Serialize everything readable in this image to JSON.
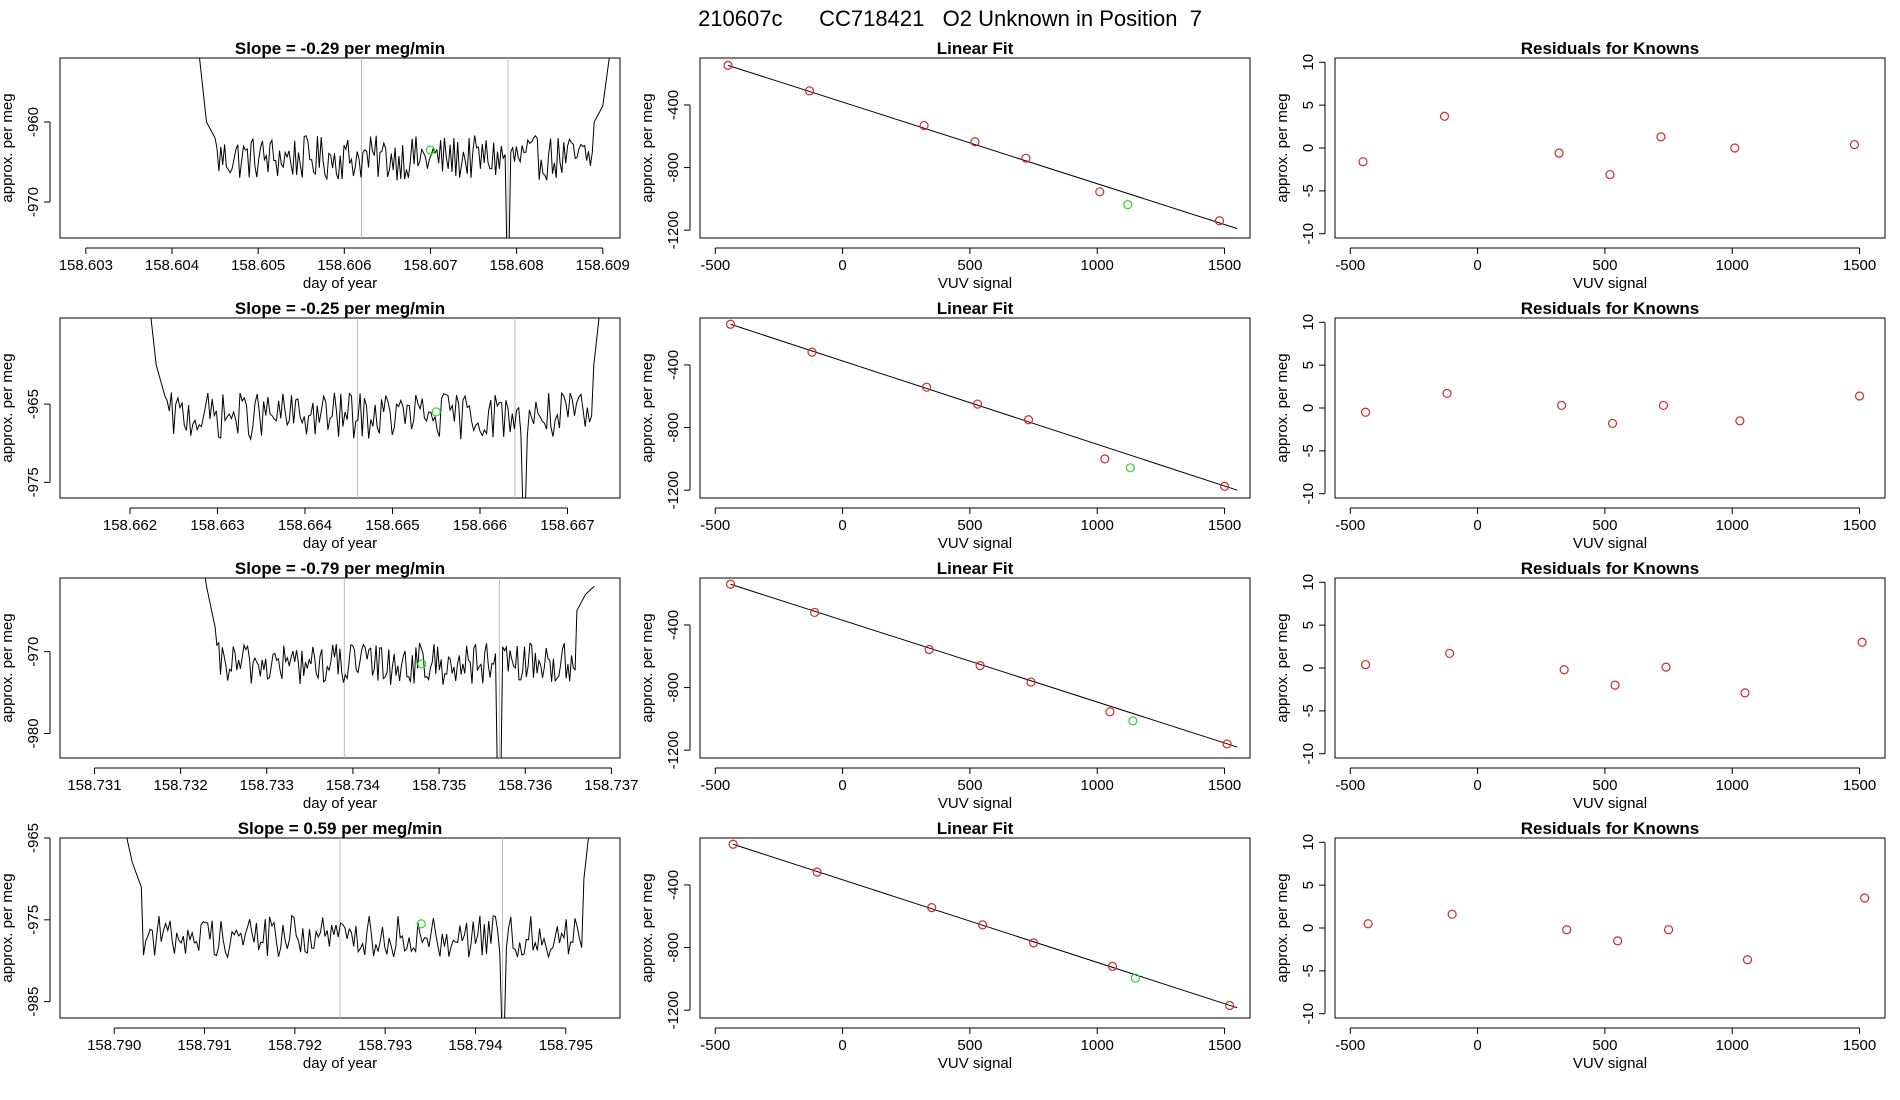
{
  "page_title": "210607c      CC718421   O2 Unknown in Position  7",
  "chart_data": [
    {
      "type": "line",
      "title": "Slope =  -0.29  per meg/min",
      "xlabel": "day of year",
      "ylabel": "approx. per meg",
      "xlim": [
        158.6027,
        158.6092
      ],
      "ylim": [
        -974.5,
        -952
      ],
      "xticks": [
        "158.603",
        "158.604",
        "158.605",
        "158.606",
        "158.607",
        "158.608",
        "158.609"
      ],
      "yticks": [
        "-960",
        "-970"
      ],
      "ytick_values": [
        -960,
        -970
      ],
      "x_start": 158.6043,
      "x_end": 158.6091,
      "baseline": -964.5,
      "amplitude": 2.8,
      "head": [
        [
          158.6043,
          -950
        ],
        [
          158.6044,
          -960
        ],
        [
          158.6045,
          -962
        ]
      ],
      "tail": [
        [
          158.6089,
          -960
        ],
        [
          158.609,
          -958
        ],
        [
          158.6091,
          -950
        ]
      ],
      "dip": [
        158.6079,
        -977
      ],
      "vlines": [
        158.6062,
        158.6079
      ],
      "highlight": [
        158.607,
        -963.5
      ]
    },
    {
      "type": "scatter",
      "title": "Linear Fit",
      "xlabel": "VUV signal",
      "ylabel": "approx. per meg",
      "xlim": [
        -560,
        1600
      ],
      "ylim": [
        -1250,
        -100
      ],
      "xticks": [
        "-500",
        "0",
        "500",
        "1000",
        "1500"
      ],
      "yticks": [
        "-400",
        "-800",
        "-1200"
      ],
      "ytick_values": [
        -400,
        -800,
        -1200
      ],
      "points_x": [
        -450,
        -130,
        320,
        520,
        720,
        1010,
        1480
      ],
      "points_y": [
        -147,
        -310,
        -531,
        -635,
        -740,
        -955,
        -1140
      ],
      "unknown": [
        1120,
        -1037
      ],
      "fit_line": [
        [
          -450,
          -147
        ],
        [
          1550,
          -1190
        ]
      ]
    },
    {
      "type": "scatter",
      "title": "Residuals for Knowns",
      "xlabel": "VUV signal",
      "ylabel": "approx. per meg",
      "xlim": [
        -560,
        1600
      ],
      "ylim": [
        -10.5,
        10.5
      ],
      "xticks": [
        "-500",
        "0",
        "500",
        "1000",
        "1500"
      ],
      "yticks": [
        "10",
        "5",
        "0",
        "-5",
        "-10"
      ],
      "ytick_values": [
        10,
        5,
        0,
        -5,
        -10
      ],
      "points_x": [
        -450,
        -130,
        320,
        520,
        720,
        1010,
        1480
      ],
      "points_y": [
        -1.6,
        3.7,
        -0.6,
        -3.1,
        1.3,
        0,
        0.4
      ]
    },
    {
      "type": "line",
      "title": "Slope =  -0.25  per meg/min",
      "xlabel": "day of year",
      "ylabel": "approx. per meg",
      "xlim": [
        158.6612,
        158.6676
      ],
      "ylim": [
        -977,
        -954
      ],
      "xticks": [
        "158.662",
        "158.663",
        "158.664",
        "158.665",
        "158.666",
        "158.667"
      ],
      "yticks": [
        "-965",
        "-975"
      ],
      "ytick_values": [
        -965,
        -975
      ],
      "x_start": 158.6622,
      "x_end": 158.6674,
      "baseline": -966.5,
      "amplitude": 3.0,
      "head": [
        [
          158.6622,
          -950
        ],
        [
          158.6623,
          -960
        ],
        [
          158.6624,
          -964
        ]
      ],
      "tail": [
        [
          158.6673,
          -960
        ],
        [
          158.6674,
          -950
        ]
      ],
      "dip": [
        158.6665,
        -979
      ],
      "vlines": [
        158.6646,
        158.6664
      ],
      "highlight": [
        158.6655,
        -966
      ]
    },
    {
      "type": "scatter",
      "title": "Linear Fit",
      "xlabel": "VUV signal",
      "ylabel": "approx. per meg",
      "xlim": [
        -560,
        1600
      ],
      "ylim": [
        -1250,
        -100
      ],
      "xticks": [
        "-500",
        "0",
        "500",
        "1000",
        "1500"
      ],
      "yticks": [
        "-400",
        "-800",
        "-1200"
      ],
      "ytick_values": [
        -400,
        -800,
        -1200
      ],
      "points_x": [
        -440,
        -120,
        330,
        530,
        730,
        1030,
        1500
      ],
      "points_y": [
        -140,
        -318,
        -542,
        -650,
        -750,
        -1000,
        -1175
      ],
      "unknown": [
        1130,
        -1057
      ],
      "fit_line": [
        [
          -440,
          -140
        ],
        [
          1550,
          -1200
        ]
      ]
    },
    {
      "type": "scatter",
      "title": "Residuals for Knowns",
      "xlabel": "VUV signal",
      "ylabel": "approx. per meg",
      "xlim": [
        -560,
        1600
      ],
      "ylim": [
        -10.5,
        10.5
      ],
      "xticks": [
        "-500",
        "0",
        "500",
        "1000",
        "1500"
      ],
      "yticks": [
        "10",
        "5",
        "0",
        "-5",
        "-10"
      ],
      "ytick_values": [
        10,
        5,
        0,
        -5,
        -10
      ],
      "points_x": [
        -440,
        -120,
        330,
        530,
        730,
        1030,
        1500
      ],
      "points_y": [
        -0.5,
        1.7,
        0.3,
        -1.8,
        0.3,
        -1.5,
        1.4
      ]
    },
    {
      "type": "line",
      "title": "Slope =  -0.79  per meg/min",
      "xlabel": "day of year",
      "ylabel": "approx. per meg",
      "xlim": [
        158.7306,
        158.7371
      ],
      "ylim": [
        -983,
        -961
      ],
      "xticks": [
        "158.731",
        "158.732",
        "158.733",
        "158.734",
        "158.735",
        "158.736",
        "158.737"
      ],
      "yticks": [
        "-970",
        "-980"
      ],
      "ytick_values": [
        -970,
        -980
      ],
      "x_start": 158.7322,
      "x_end": 158.7368,
      "baseline": -971.5,
      "amplitude": 2.6,
      "head": [
        [
          158.7322,
          -955
        ],
        [
          158.7323,
          -962
        ],
        [
          158.7324,
          -967
        ]
      ],
      "tail": [
        [
          158.7366,
          -965
        ],
        [
          158.7367,
          -963
        ],
        [
          158.7368,
          -962
        ]
      ],
      "dip": [
        158.7357,
        -985
      ],
      "vlines": [
        158.7339,
        158.7357
      ],
      "highlight": [
        158.7348,
        -971.5
      ]
    },
    {
      "type": "scatter",
      "title": "Linear Fit",
      "xlabel": "VUV signal",
      "ylabel": "approx. per meg",
      "xlim": [
        -560,
        1600
      ],
      "ylim": [
        -1250,
        -100
      ],
      "xticks": [
        "-500",
        "0",
        "500",
        "1000",
        "1500"
      ],
      "yticks": [
        "-400",
        "-800",
        "-1200"
      ],
      "ytick_values": [
        -400,
        -800,
        -1200
      ],
      "points_x": [
        -440,
        -110,
        340,
        540,
        740,
        1050,
        1510
      ],
      "points_y": [
        -140,
        -320,
        -557,
        -660,
        -765,
        -955,
        -1160
      ],
      "unknown": [
        1140,
        -1013
      ],
      "fit_line": [
        [
          -440,
          -140
        ],
        [
          1550,
          -1180
        ]
      ]
    },
    {
      "type": "scatter",
      "title": "Residuals for Knowns",
      "xlabel": "VUV signal",
      "ylabel": "approx. per meg",
      "xlim": [
        -560,
        1600
      ],
      "ylim": [
        -10.5,
        10.5
      ],
      "xticks": [
        "-500",
        "0",
        "500",
        "1000",
        "1500"
      ],
      "yticks": [
        "10",
        "5",
        "0",
        "-5",
        "-10"
      ],
      "ytick_values": [
        10,
        5,
        0,
        -5,
        -10
      ],
      "points_x": [
        -440,
        -110,
        340,
        540,
        740,
        1050,
        1510
      ],
      "points_y": [
        0.4,
        1.7,
        -0.2,
        -2.0,
        0.1,
        -2.9,
        3.0
      ]
    },
    {
      "type": "line",
      "title": "Slope =  0.59  per meg/min",
      "xlabel": "day of year",
      "ylabel": "approx. per meg",
      "xlim": [
        158.7894,
        158.7956
      ],
      "ylim": [
        -987,
        -965
      ],
      "xticks": [
        "158.790",
        "158.791",
        "158.792",
        "158.793",
        "158.794",
        "158.795"
      ],
      "yticks": [
        "-965",
        "-975",
        "-985"
      ],
      "ytick_values": [
        -965,
        -975,
        -985
      ],
      "x_start": 158.7901,
      "x_end": 158.7953,
      "baseline": -977,
      "amplitude": 2.6,
      "head": [
        [
          158.7901,
          -963
        ],
        [
          158.7902,
          -968
        ],
        [
          158.7903,
          -971
        ]
      ],
      "tail": [
        [
          158.7952,
          -970
        ],
        [
          158.7953,
          -960
        ]
      ],
      "dip": [
        158.7943,
        -989
      ],
      "vlines": [
        158.7925,
        158.7943
      ],
      "highlight": [
        158.7934,
        -975.5
      ]
    },
    {
      "type": "scatter",
      "title": "Linear Fit",
      "xlabel": "VUV signal",
      "ylabel": "approx. per meg",
      "xlim": [
        -560,
        1600
      ],
      "ylim": [
        -1250,
        -100
      ],
      "xticks": [
        "-500",
        "0",
        "500",
        "1000",
        "1500"
      ],
      "yticks": [
        "-400",
        "-800",
        "-1200"
      ],
      "ytick_values": [
        -400,
        -800,
        -1200
      ],
      "points_x": [
        -430,
        -100,
        350,
        550,
        750,
        1060,
        1520
      ],
      "points_y": [
        -140,
        -318,
        -545,
        -655,
        -770,
        -920,
        -1170
      ],
      "unknown": [
        1150,
        -995
      ],
      "fit_line": [
        [
          -430,
          -140
        ],
        [
          1550,
          -1185
        ]
      ]
    },
    {
      "type": "scatter",
      "title": "Residuals for Knowns",
      "xlabel": "VUV signal",
      "ylabel": "approx. per meg",
      "xlim": [
        -560,
        1600
      ],
      "ylim": [
        -10.5,
        10.5
      ],
      "xticks": [
        "-500",
        "0",
        "500",
        "1000",
        "1500"
      ],
      "yticks": [
        "10",
        "5",
        "0",
        "-5",
        "-10"
      ],
      "ytick_values": [
        10,
        5,
        0,
        -5,
        -10
      ],
      "points_x": [
        -430,
        -100,
        350,
        550,
        750,
        1060,
        1520
      ],
      "points_y": [
        0.5,
        1.6,
        -0.2,
        -1.5,
        -0.2,
        -3.7,
        3.5
      ]
    }
  ],
  "colors": {
    "line": "#000000",
    "known_point": "#d62728",
    "unknown_point": "#22dd22",
    "vline": "#bbbbbb",
    "axis": "#000000"
  }
}
